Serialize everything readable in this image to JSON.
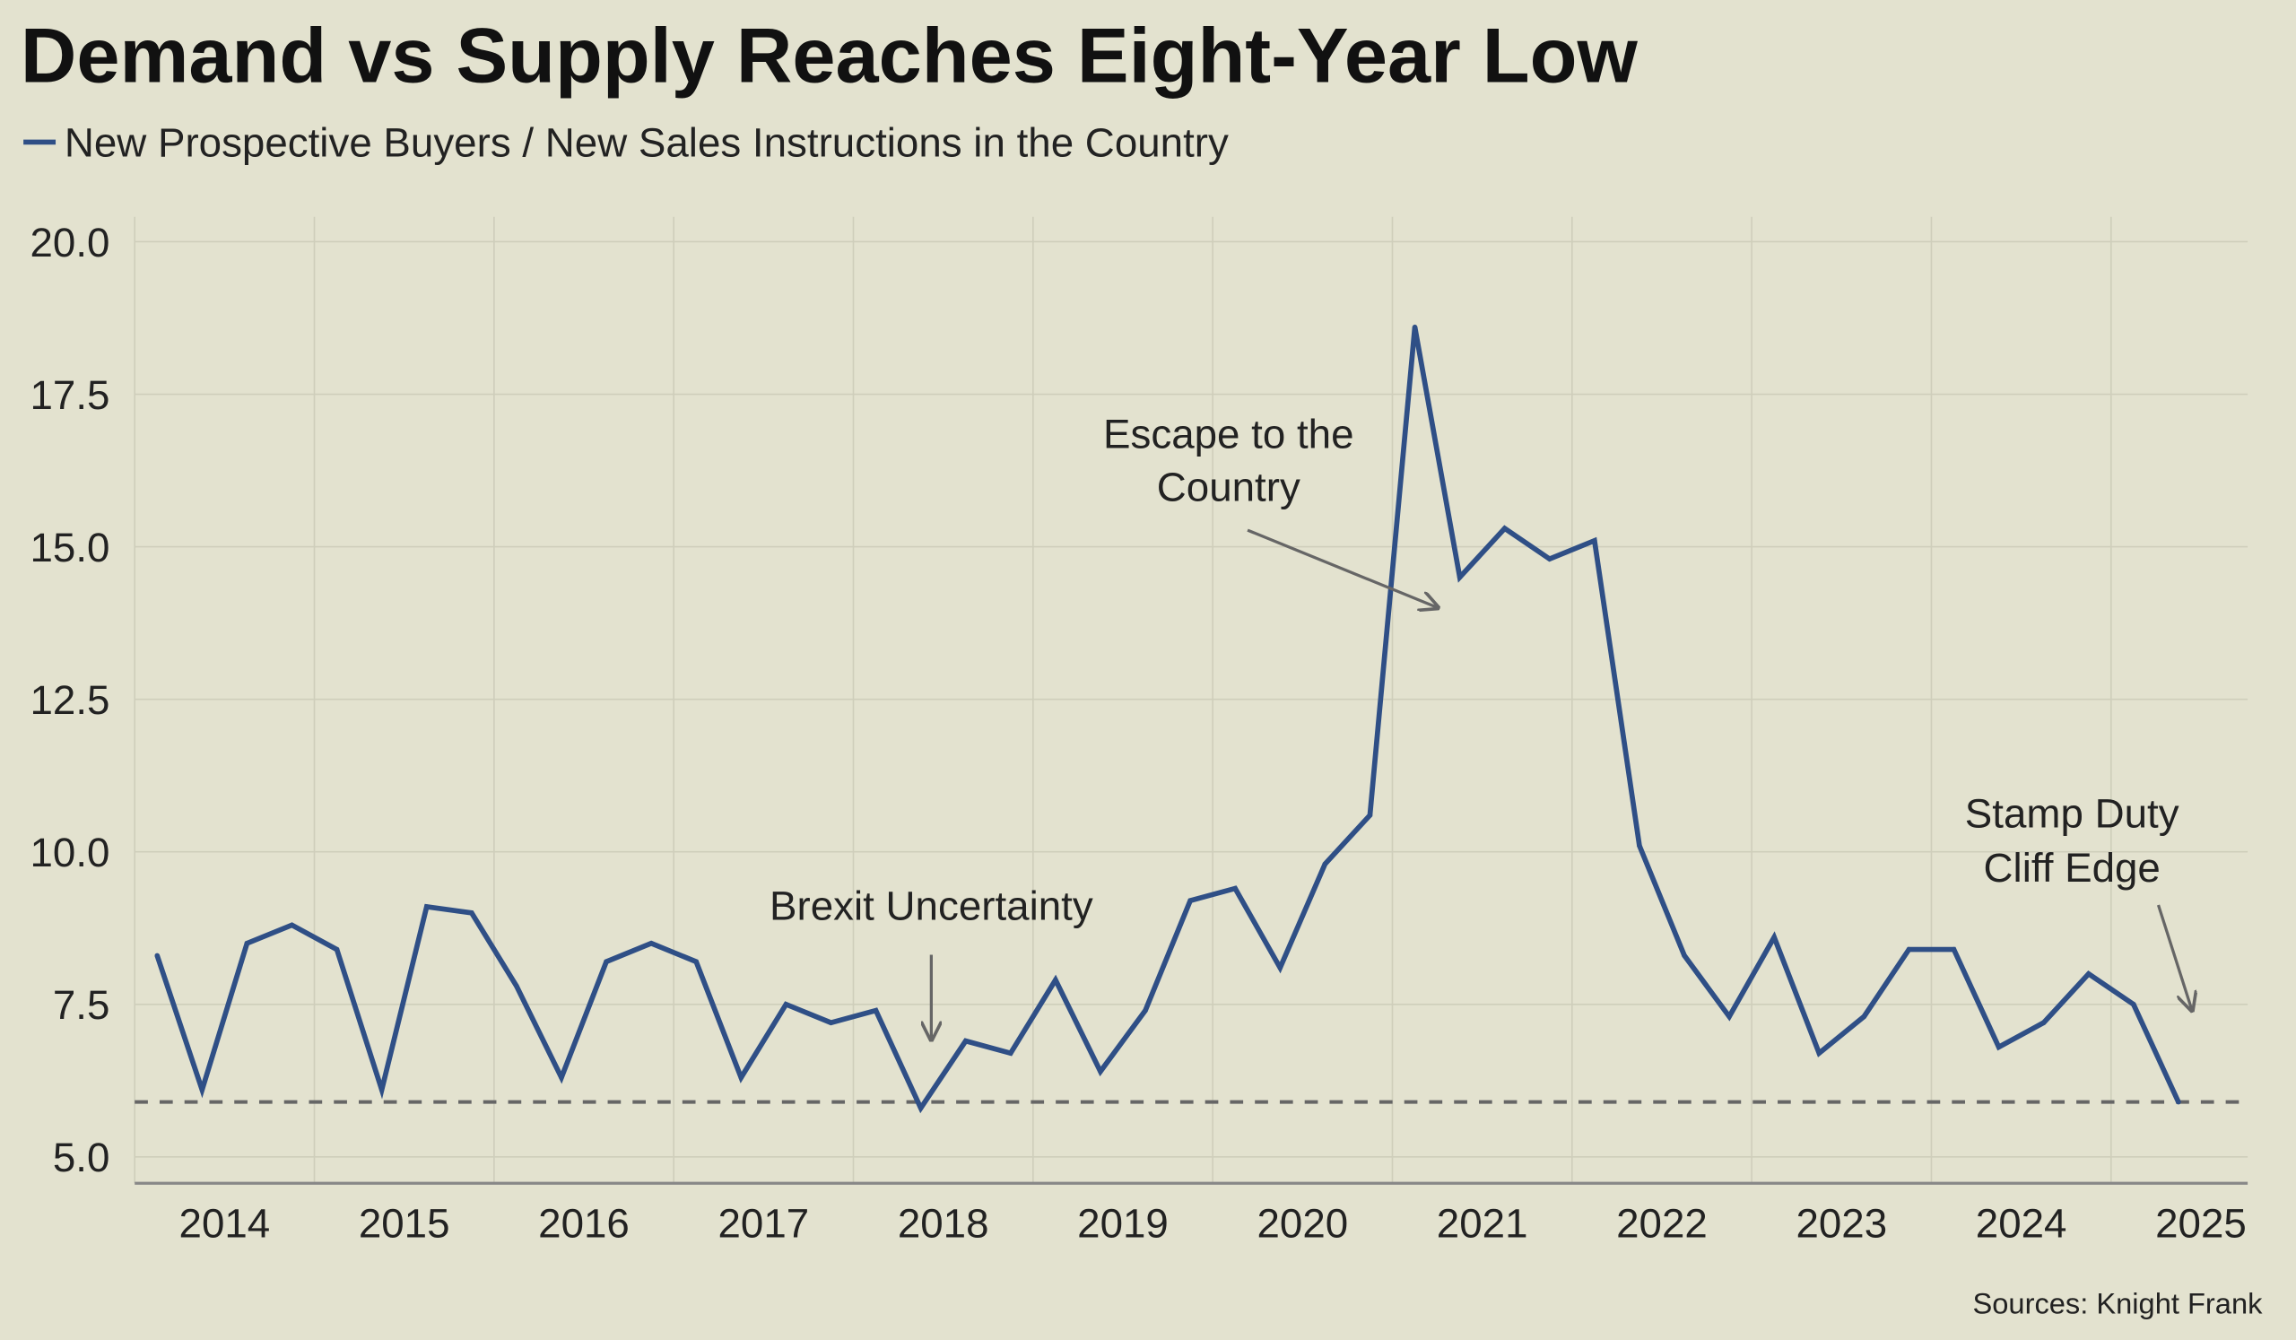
{
  "chart_data": {
    "type": "line",
    "title": "Demand vs Supply Reaches Eight-Year Low",
    "legend_position": "top-left",
    "grid": true,
    "background_color": "#e3e2cf",
    "series": [
      {
        "name": "New Prospective Buyers / New Sales Instructions in the Country",
        "color": "#2f4f86",
        "x": [
          "2014-Q1",
          "2014-Q2",
          "2014-Q3",
          "2014-Q4",
          "2015-Q1",
          "2015-Q2",
          "2015-Q3",
          "2015-Q4",
          "2016-Q1",
          "2016-Q2",
          "2016-Q3",
          "2016-Q4",
          "2017-Q1",
          "2017-Q2",
          "2017-Q3",
          "2017-Q4",
          "2018-Q1",
          "2018-Q2",
          "2018-Q3",
          "2018-Q4",
          "2019-Q1",
          "2019-Q2",
          "2019-Q3",
          "2019-Q4",
          "2020-Q1",
          "2020-Q2",
          "2020-Q3",
          "2020-Q4",
          "2021-Q1",
          "2021-Q2",
          "2021-Q3",
          "2021-Q4",
          "2022-Q1",
          "2022-Q2",
          "2022-Q3",
          "2022-Q4",
          "2023-Q1",
          "2023-Q2",
          "2023-Q3",
          "2023-Q4",
          "2024-Q1",
          "2024-Q2",
          "2024-Q3",
          "2024-Q4",
          "2025-Q1",
          "2025-Q2"
        ],
        "values": [
          8.3,
          6.1,
          8.5,
          8.8,
          8.4,
          6.1,
          9.1,
          9.0,
          7.8,
          6.3,
          8.2,
          8.5,
          8.2,
          6.3,
          7.5,
          7.2,
          7.4,
          5.8,
          6.9,
          6.7,
          7.9,
          6.4,
          7.4,
          9.2,
          9.4,
          8.1,
          9.8,
          10.6,
          18.6,
          14.5,
          15.3,
          14.8,
          15.1,
          10.1,
          8.3,
          7.3,
          8.6,
          6.7,
          7.3,
          8.4,
          8.4,
          6.8,
          7.2,
          8.0,
          7.5,
          5.9
        ]
      }
    ],
    "reference_line": {
      "value": 5.9,
      "style": "dashed",
      "color": "#666666"
    },
    "xlabel": "",
    "ylabel": "",
    "x_tick_labels": [
      "2014",
      "2015",
      "2016",
      "2017",
      "2018",
      "2019",
      "2020",
      "2021",
      "2022",
      "2023",
      "2024",
      "2025"
    ],
    "y_ticks": [
      5.0,
      7.5,
      10.0,
      12.5,
      15.0,
      17.5,
      20.0
    ],
    "y_tick_labels": [
      "5.0",
      "7.5",
      "10.0",
      "12.5",
      "15.0",
      "17.5",
      "20.0"
    ],
    "ylim": [
      4.57,
      20.4
    ],
    "annotations": [
      {
        "lines": [
          "Escape to the",
          "Country"
        ],
        "points_to": "2020-Q4"
      },
      {
        "lines": [
          "Brexit Uncertainty"
        ],
        "points_to": "2018-Q2"
      },
      {
        "lines": [
          "Stamp Duty",
          "Cliff Edge"
        ],
        "points_to": "2025-Q2"
      }
    ],
    "source": "Sources: Knight Frank"
  }
}
